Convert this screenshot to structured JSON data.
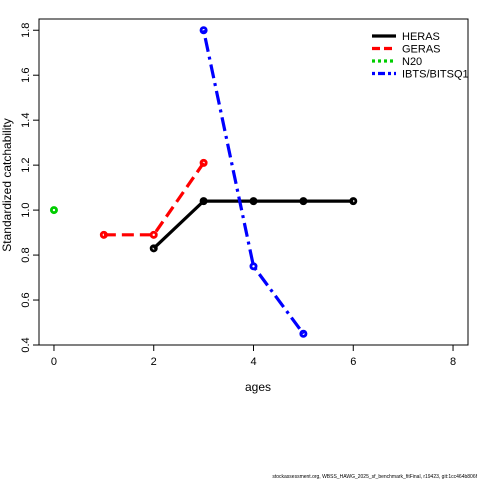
{
  "chart_data": {
    "type": "line",
    "title": "",
    "xlabel": "ages",
    "ylabel": "Standardized catchability",
    "xlim": [
      -0.3,
      8.3
    ],
    "ylim": [
      0.4,
      1.85
    ],
    "x_ticks": [
      0,
      2,
      4,
      6,
      8
    ],
    "y_ticks": [
      0.4,
      0.6,
      0.8,
      1.0,
      1.2,
      1.4,
      1.6,
      1.8
    ],
    "x_tick_labels": [
      "0",
      "2",
      "4",
      "6",
      "8"
    ],
    "y_tick_labels": [
      "0.4",
      "0.6",
      "0.8",
      "1.0",
      "1.2",
      "1.4",
      "1.6",
      "1.8"
    ],
    "grid": false,
    "legend_position": "top-right",
    "series": [
      {
        "name": "HERAS",
        "color": "#000000",
        "line_style": "solid",
        "x": [
          2,
          3,
          4,
          5,
          6
        ],
        "y": [
          0.83,
          1.04,
          1.04,
          1.04,
          1.04
        ]
      },
      {
        "name": "GERAS",
        "color": "#ff0000",
        "line_style": "dashed",
        "x": [
          1,
          2,
          3
        ],
        "y": [
          0.89,
          0.89,
          1.21
        ]
      },
      {
        "name": "N20",
        "color": "#00cd00",
        "line_style": "dotted",
        "x": [
          0
        ],
        "y": [
          1.0
        ]
      },
      {
        "name": "IBTS/BITSQ1",
        "color": "#0000ff",
        "line_style": "dotdash",
        "x": [
          3,
          4,
          5
        ],
        "y": [
          1.8,
          0.75,
          0.45
        ]
      }
    ]
  },
  "footer_text": "stockassessment.org, WBSS_HAWG_2025_sf_benchmark_fitFinal, r19423, git:1cc464b806f"
}
